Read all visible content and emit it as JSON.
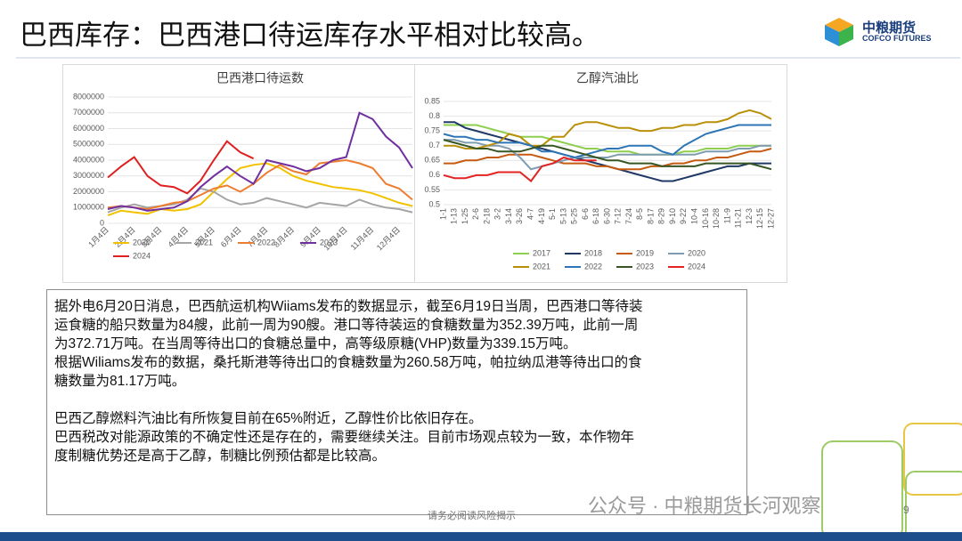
{
  "header": {
    "title": "巴西库存：巴西港口待运库存水平相对比较高。",
    "logo_cn": "中粮期货",
    "logo_en": "COFCO FUTURES"
  },
  "chart_data": [
    {
      "type": "line",
      "title": "巴西港口待运数",
      "categories": [
        "1月4日",
        null,
        "2月4日",
        null,
        "3月4日",
        null,
        "4月4日",
        null,
        "5月4日",
        null,
        "6月4日",
        null,
        "7月4日",
        null,
        "8月4日",
        null,
        "9月4日",
        null,
        "10月4日",
        null,
        "11月4日",
        null,
        "12月4日",
        null
      ],
      "ylim": [
        0,
        8000000
      ],
      "yticks": [
        0,
        1000000,
        2000000,
        3000000,
        4000000,
        5000000,
        6000000,
        7000000,
        8000000
      ],
      "grid": true,
      "legend": "bottom",
      "series": [
        {
          "name": "2020",
          "color": "#f2c200",
          "values": [
            500000,
            800000,
            700000,
            600000,
            900000,
            800000,
            900000,
            1200000,
            2000000,
            2800000,
            3500000,
            3700000,
            3800000,
            3500000,
            3000000,
            2700000,
            2500000,
            2300000,
            2200000,
            2100000,
            1900000,
            1600000,
            1300000,
            1100000
          ]
        },
        {
          "name": "2021",
          "color": "#a5a5a5",
          "values": [
            700000,
            1000000,
            1200000,
            1000000,
            1100000,
            1200000,
            1500000,
            2200000,
            2000000,
            1500000,
            1200000,
            1300000,
            1600000,
            1400000,
            1200000,
            1000000,
            1300000,
            1200000,
            1100000,
            1500000,
            1200000,
            1000000,
            900000,
            700000
          ]
        },
        {
          "name": "2022",
          "color": "#ed7d31",
          "values": [
            1000000,
            1100000,
            1000000,
            900000,
            1100000,
            1300000,
            1400000,
            1800000,
            2200000,
            2400000,
            2000000,
            2500000,
            3200000,
            3700000,
            3300000,
            3100000,
            3800000,
            3900000,
            4000000,
            3800000,
            3500000,
            2500000,
            2200000,
            1500000
          ]
        },
        {
          "name": "2023",
          "color": "#7030a0",
          "values": [
            900000,
            1100000,
            1000000,
            800000,
            900000,
            1000000,
            1400000,
            2300000,
            3000000,
            3600000,
            3000000,
            2500000,
            4000000,
            3800000,
            3600000,
            3300000,
            3500000,
            4000000,
            4200000,
            7000000,
            6600000,
            5500000,
            4800000,
            3500000
          ]
        },
        {
          "name": "2024",
          "color": "#e02020",
          "values": [
            2900000,
            3600000,
            4200000,
            3000000,
            2400000,
            2300000,
            1900000,
            2700000,
            4000000,
            5200000,
            4500000,
            4100000,
            null,
            null,
            null,
            null,
            null,
            null,
            null,
            null,
            null,
            null,
            null,
            null
          ]
        }
      ]
    },
    {
      "type": "line",
      "title": "乙醇汽油比",
      "categories": [
        "1-1",
        "1-13",
        "1-25",
        "2-6",
        "2-18",
        "3-2",
        "3-14",
        "3-26",
        "4-7",
        "4-19",
        "5-1",
        "5-13",
        "5-25",
        "6-6",
        "6-18",
        "6-30",
        "7-12",
        "7-24",
        "8-5",
        "8-17",
        "8-29",
        "9-10",
        "9-22",
        "10-4",
        "10-16",
        "10-28",
        "11-9",
        "11-21",
        "12-3",
        "12-15",
        "12-27"
      ],
      "ylim": [
        0.5,
        0.85
      ],
      "yticks": [
        0.5,
        0.55,
        0.6,
        0.65,
        0.7,
        0.75,
        0.8,
        0.85
      ],
      "grid": true,
      "legend": "bottom",
      "series": [
        {
          "name": "2017",
          "color": "#8fcf4f",
          "values": [
            0.77,
            0.77,
            0.77,
            0.77,
            0.76,
            0.75,
            0.74,
            0.73,
            0.73,
            0.73,
            0.72,
            0.71,
            0.7,
            0.69,
            0.69,
            0.68,
            0.68,
            0.68,
            0.67,
            0.67,
            0.67,
            0.67,
            0.68,
            0.68,
            0.69,
            0.69,
            0.69,
            0.7,
            0.7,
            0.7,
            0.7
          ]
        },
        {
          "name": "2018",
          "color": "#1f3864",
          "values": [
            0.78,
            0.78,
            0.76,
            0.75,
            0.74,
            0.73,
            0.72,
            0.71,
            0.7,
            0.69,
            0.68,
            0.67,
            0.66,
            0.65,
            0.64,
            0.63,
            0.62,
            0.61,
            0.6,
            0.59,
            0.58,
            0.58,
            0.59,
            0.6,
            0.61,
            0.62,
            0.63,
            0.63,
            0.64,
            0.64,
            0.64
          ]
        },
        {
          "name": "2019",
          "color": "#c55a11",
          "values": [
            0.64,
            0.64,
            0.65,
            0.65,
            0.66,
            0.66,
            0.67,
            0.67,
            0.67,
            0.66,
            0.65,
            0.64,
            0.64,
            0.64,
            0.63,
            0.63,
            0.62,
            0.62,
            0.62,
            0.63,
            0.63,
            0.64,
            0.64,
            0.65,
            0.65,
            0.66,
            0.66,
            0.67,
            0.68,
            0.68,
            0.69
          ]
        },
        {
          "name": "2020",
          "color": "#7f9cb0",
          "values": [
            0.72,
            0.72,
            0.71,
            0.71,
            0.7,
            0.7,
            0.69,
            0.66,
            0.62,
            0.63,
            0.64,
            0.65,
            0.66,
            0.66,
            0.66,
            0.66,
            0.67,
            0.67,
            0.67,
            0.67,
            0.67,
            0.67,
            0.67,
            0.67,
            0.68,
            0.68,
            0.68,
            0.69,
            0.69,
            0.7,
            0.7
          ]
        },
        {
          "name": "2021",
          "color": "#b8900a",
          "values": [
            0.7,
            0.7,
            0.69,
            0.69,
            0.7,
            0.71,
            0.74,
            0.73,
            0.7,
            0.7,
            0.73,
            0.73,
            0.77,
            0.78,
            0.78,
            0.77,
            0.76,
            0.76,
            0.75,
            0.75,
            0.76,
            0.76,
            0.77,
            0.77,
            0.78,
            0.78,
            0.79,
            0.81,
            0.82,
            0.81,
            0.79
          ]
        },
        {
          "name": "2022",
          "color": "#2e75b6",
          "values": [
            0.74,
            0.73,
            0.73,
            0.72,
            0.72,
            0.71,
            0.71,
            0.71,
            0.7,
            0.68,
            0.68,
            0.67,
            0.66,
            0.67,
            0.68,
            0.69,
            0.69,
            0.7,
            0.7,
            0.7,
            0.68,
            0.67,
            0.7,
            0.72,
            0.74,
            0.75,
            0.76,
            0.77,
            0.77,
            0.77,
            0.77
          ]
        },
        {
          "name": "2023",
          "color": "#375623",
          "values": [
            0.72,
            0.71,
            0.7,
            0.69,
            0.69,
            0.68,
            0.68,
            0.68,
            0.69,
            0.7,
            0.7,
            0.69,
            0.68,
            0.67,
            0.66,
            0.65,
            0.65,
            0.64,
            0.64,
            0.64,
            0.63,
            0.63,
            0.63,
            0.63,
            0.64,
            0.64,
            0.64,
            0.64,
            0.64,
            0.63,
            0.62
          ]
        },
        {
          "name": "2024",
          "color": "#e32424",
          "values": [
            0.6,
            0.59,
            0.59,
            0.6,
            0.6,
            0.61,
            0.61,
            0.61,
            0.58,
            0.63,
            0.64,
            0.66,
            0.65,
            0.65,
            0.65,
            null,
            null,
            null,
            null,
            null,
            null,
            null,
            null,
            null,
            null,
            null,
            null,
            null,
            null,
            null,
            null
          ]
        }
      ]
    }
  ],
  "text": {
    "blocks": [
      {
        "lines": [
          "据外电6月20日消息，巴西航运机构Wiiams发布的数据显示，截至6月19日当周，巴西港口等待装",
          "运食糖的船只数量为84艘，此前一周为90艘。港口等待装运的食糖数量为352.39万吨，此前一周",
          "为372.71万吨。在当周等待出口的食糖总量中，高等级原糖(VHP)数量为339.15万吨。",
          "根据Wiliams发布的数据，桑托斯港等待出口的食糖数量为260.58万吨，帕拉纳瓜港等待出口的食",
          "糖数量为81.17万吨。"
        ]
      },
      {
        "lines": [
          "巴西乙醇燃料汽油比有所恢复目前在65%附近，乙醇性价比依旧存在。",
          "巴西税改对能源政策的不确定性还是存在的，需要继续关注。目前市场观点较为一致，本作物年",
          "度制糖优势还是高于乙醇，制糖比例预估都是比较高。"
        ]
      }
    ]
  },
  "footer": {
    "disclaimer": "请务必阅读风险揭示",
    "watermark": "公众号 · 中粮期货长河观察",
    "page": "9"
  }
}
